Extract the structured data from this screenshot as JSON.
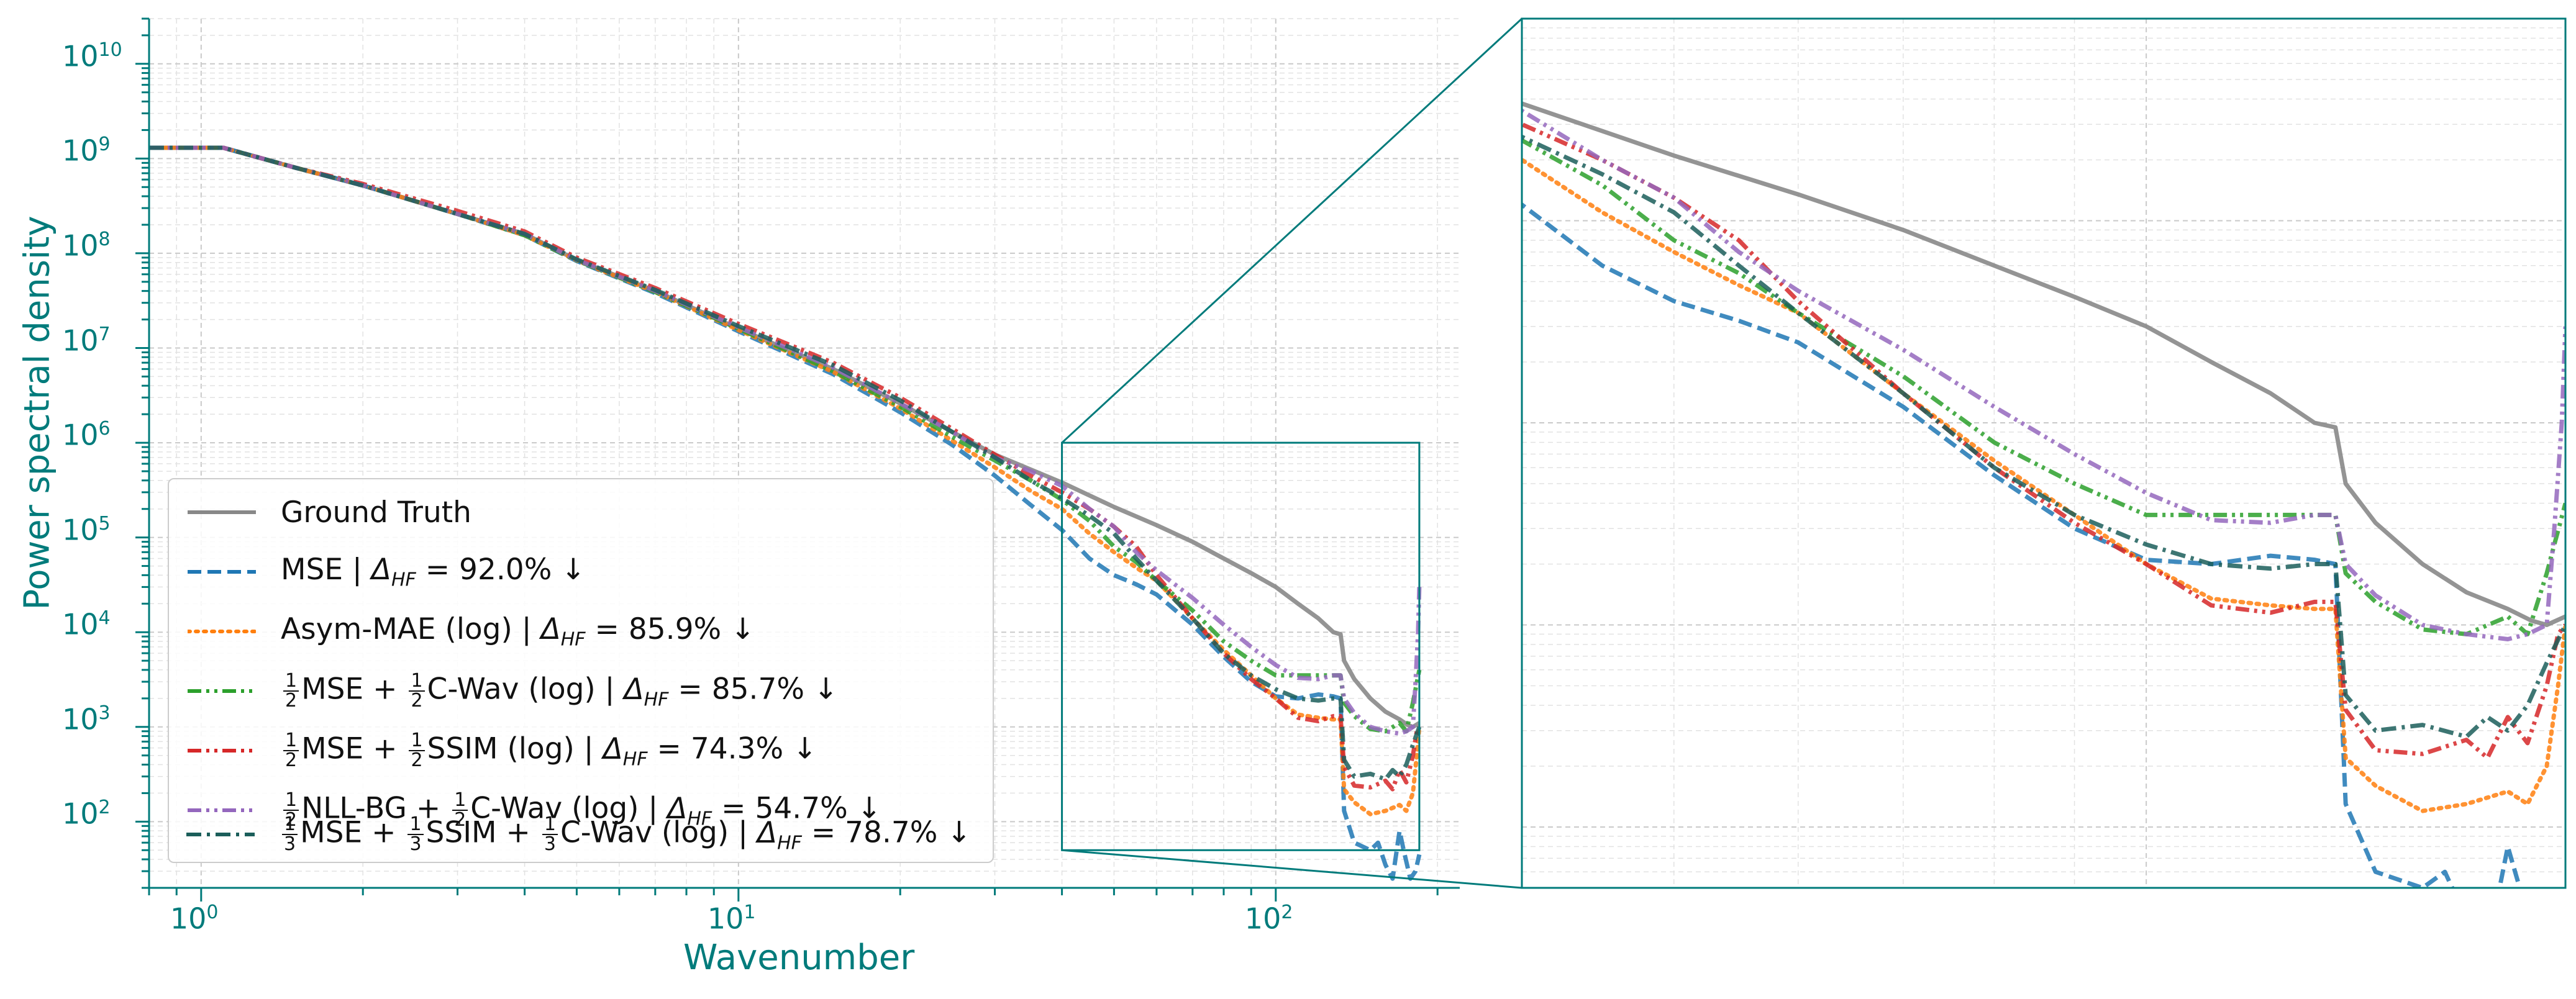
{
  "chart_data": {
    "type": "line",
    "xlabel": "Wavenumber",
    "ylabel": "Power spectral density",
    "x_scale": "log",
    "y_scale": "log",
    "xlim": [
      0.8,
      220
    ],
    "ylim": [
      20,
      30000000000
    ],
    "x_tick_labels": [
      "10^0",
      "10^1",
      "10^2"
    ],
    "y_tick_labels": [
      "10^2",
      "10^3",
      "10^4",
      "10^5",
      "10^6",
      "10^7",
      "10^8",
      "10^9",
      "10^10"
    ],
    "grid": true,
    "legend_position": "lower-left",
    "inset": {
      "xlim": [
        40,
        185
      ],
      "ylim": [
        50,
        1000000
      ],
      "connector": true
    },
    "accent_color": "#007b7b",
    "series": [
      {
        "name": "Ground Truth",
        "color": "#888888",
        "style": "solid",
        "points": [
          [
            0.8,
            1300000000.0
          ],
          [
            1.1,
            1300000000.0
          ],
          [
            1.5,
            800000000.0
          ],
          [
            2,
            520000000.0
          ],
          [
            3,
            260000000.0
          ],
          [
            4,
            160000000.0
          ],
          [
            5,
            85000000.0
          ],
          [
            7,
            40000000.0
          ],
          [
            10,
            16000000.0
          ],
          [
            15,
            6000000.0
          ],
          [
            20,
            2600000.0
          ],
          [
            25,
            1300000.0
          ],
          [
            30,
            750000.0
          ],
          [
            40,
            380000.0
          ],
          [
            50,
            210000.0
          ],
          [
            60,
            135000.0
          ],
          [
            70,
            90000.0
          ],
          [
            80,
            60000.0
          ],
          [
            90,
            42000.0
          ],
          [
            100,
            30000.0
          ],
          [
            110,
            20000.0
          ],
          [
            120,
            14000.0
          ],
          [
            128,
            10000.0
          ],
          [
            132,
            9500.0
          ],
          [
            134,
            5000.0
          ],
          [
            140,
            3200.0
          ],
          [
            150,
            2000.0
          ],
          [
            160,
            1450.0
          ],
          [
            170,
            1200.0
          ],
          [
            176,
            1050.0
          ],
          [
            180,
            1000.0
          ],
          [
            185,
            1100.0
          ]
        ]
      },
      {
        "name": "MSE | Δ_HF = 92.0% ↓",
        "color": "#1f77b4",
        "style": "dashed",
        "points": [
          [
            0.8,
            1300000000.0
          ],
          [
            1.1,
            1300000000.0
          ],
          [
            1.5,
            800000000.0
          ],
          [
            2,
            520000000.0
          ],
          [
            3,
            260000000.0
          ],
          [
            4,
            155000000.0
          ],
          [
            5,
            83000000.0
          ],
          [
            7,
            38000000.0
          ],
          [
            10,
            15000000.0
          ],
          [
            15,
            5300000.0
          ],
          [
            20,
            2100000.0
          ],
          [
            25,
            950000.0
          ],
          [
            30,
            450000.0
          ],
          [
            35,
            220000.0
          ],
          [
            40,
            120000.0
          ],
          [
            45,
            60000.0
          ],
          [
            50,
            40000.0
          ],
          [
            55,
            32000.0
          ],
          [
            60,
            25000.0
          ],
          [
            70,
            12000.0
          ],
          [
            80,
            5500.0
          ],
          [
            90,
            3000.0
          ],
          [
            100,
            2100.0
          ],
          [
            110,
            2000.0
          ],
          [
            120,
            2200.0
          ],
          [
            128,
            2100.0
          ],
          [
            132,
            2000.0
          ],
          [
            134,
            130
          ],
          [
            140,
            60
          ],
          [
            150,
            50
          ],
          [
            155,
            60
          ],
          [
            160,
            35
          ],
          [
            165,
            25
          ],
          [
            170,
            80
          ],
          [
            173,
            50
          ],
          [
            178,
            25
          ],
          [
            182,
            30
          ],
          [
            185,
            45
          ]
        ]
      },
      {
        "name": "Asym-MAE (log) | Δ_HF = 85.9% ↓",
        "color": "#ff7f0e",
        "style": "dotted",
        "points": [
          [
            0.8,
            1300000000.0
          ],
          [
            1.1,
            1300000000.0
          ],
          [
            1.5,
            800000000.0
          ],
          [
            2,
            520000000.0
          ],
          [
            3,
            260000000.0
          ],
          [
            4,
            155000000.0
          ],
          [
            5,
            84000000.0
          ],
          [
            7,
            39000000.0
          ],
          [
            10,
            15500000.0
          ],
          [
            15,
            5600000.0
          ],
          [
            20,
            2300000.0
          ],
          [
            25,
            1050000.0
          ],
          [
            30,
            550000.0
          ],
          [
            35,
            310000.0
          ],
          [
            40,
            200000.0
          ],
          [
            45,
            110000.0
          ],
          [
            50,
            70000.0
          ],
          [
            55,
            48000.0
          ],
          [
            60,
            35000.0
          ],
          [
            70,
            14000.0
          ],
          [
            80,
            6500.0
          ],
          [
            90,
            3500.0
          ],
          [
            100,
            2000.0
          ],
          [
            110,
            1350.0
          ],
          [
            120,
            1250.0
          ],
          [
            128,
            1200.0
          ],
          [
            132,
            1200.0
          ],
          [
            134,
            220
          ],
          [
            140,
            160
          ],
          [
            150,
            120
          ],
          [
            160,
            130
          ],
          [
            170,
            150
          ],
          [
            175,
            130
          ],
          [
            180,
            200
          ],
          [
            183,
            500
          ],
          [
            185,
            1000.0
          ]
        ]
      },
      {
        "name": "1/2MSE + 1/2C-Wav (log) | Δ_HF = 85.7% ↓",
        "color": "#2ca02c",
        "style": "dashdotdot",
        "points": [
          [
            0.8,
            1300000000.0
          ],
          [
            1.1,
            1300000000.0
          ],
          [
            1.5,
            800000000.0
          ],
          [
            2,
            520000000.0
          ],
          [
            3,
            260000000.0
          ],
          [
            4,
            155000000.0
          ],
          [
            5,
            84000000.0
          ],
          [
            7,
            39000000.0
          ],
          [
            10,
            16000000.0
          ],
          [
            15,
            5700000.0
          ],
          [
            20,
            2400000.0
          ],
          [
            25,
            1150000.0
          ],
          [
            30,
            650000.0
          ],
          [
            35,
            400000.0
          ],
          [
            40,
            250000.0
          ],
          [
            45,
            150000.0
          ],
          [
            50,
            80000.0
          ],
          [
            55,
            55000.0
          ],
          [
            60,
            35000.0
          ],
          [
            70,
            17000.0
          ],
          [
            80,
            8000.0
          ],
          [
            90,
            5000.0
          ],
          [
            100,
            3500.0
          ],
          [
            110,
            3500.0
          ],
          [
            120,
            3500.0
          ],
          [
            128,
            3500.0
          ],
          [
            132,
            3500.0
          ],
          [
            134,
            1800.0
          ],
          [
            140,
            1300.0
          ],
          [
            150,
            950
          ],
          [
            160,
            900
          ],
          [
            170,
            1100.0
          ],
          [
            175,
            900
          ],
          [
            180,
            1800.0
          ],
          [
            182,
            2500.0
          ],
          [
            185,
            4000.0
          ]
        ]
      },
      {
        "name": "1/2MSE + 1/2SSIM (log) | Δ_HF = 74.3% ↓",
        "color": "#d62728",
        "style": "dashdotdot",
        "points": [
          [
            0.8,
            1300000000.0
          ],
          [
            1.1,
            1300000000.0
          ],
          [
            1.5,
            800000000.0
          ],
          [
            2,
            540000000.0
          ],
          [
            3,
            280000000.0
          ],
          [
            4,
            170000000.0
          ],
          [
            5,
            90000000.0
          ],
          [
            7,
            43000000.0
          ],
          [
            10,
            18000000.0
          ],
          [
            15,
            7000000.0
          ],
          [
            20,
            3000000.0
          ],
          [
            25,
            1400000.0
          ],
          [
            30,
            750000.0
          ],
          [
            35,
            450000.0
          ],
          [
            40,
            300000.0
          ],
          [
            45,
            200000.0
          ],
          [
            50,
            130000.0
          ],
          [
            55,
            80000.0
          ],
          [
            60,
            40000.0
          ],
          [
            70,
            14000.0
          ],
          [
            80,
            6000.0
          ],
          [
            90,
            3200.0
          ],
          [
            100,
            2000.0
          ],
          [
            110,
            1250.0
          ],
          [
            120,
            1150.0
          ],
          [
            128,
            1300.0
          ],
          [
            132,
            1300.0
          ],
          [
            134,
            380
          ],
          [
            140,
            240
          ],
          [
            150,
            230
          ],
          [
            160,
            270
          ],
          [
            165,
            220
          ],
          [
            170,
            350
          ],
          [
            175,
            260
          ],
          [
            180,
            500
          ],
          [
            183,
            900
          ],
          [
            185,
            1000.0
          ]
        ]
      },
      {
        "name": "1/2NLL-BG + 1/2C-Wav (log) | Δ_HF = 54.7% ↓",
        "color": "#9467bd",
        "style": "dashdotdot",
        "points": [
          [
            0.8,
            1300000000.0
          ],
          [
            1.1,
            1300000000.0
          ],
          [
            1.5,
            800000000.0
          ],
          [
            2,
            520000000.0
          ],
          [
            3,
            260000000.0
          ],
          [
            4,
            160000000.0
          ],
          [
            5,
            85000000.0
          ],
          [
            7,
            40000000.0
          ],
          [
            10,
            16500000.0
          ],
          [
            15,
            6200000.0
          ],
          [
            20,
            2600000.0
          ],
          [
            25,
            1300000.0
          ],
          [
            30,
            700000.0
          ],
          [
            35,
            500000.0
          ],
          [
            40,
            350000.0
          ],
          [
            45,
            200000.0
          ],
          [
            50,
            130000.0
          ],
          [
            55,
            70000.0
          ],
          [
            60,
            45000.0
          ],
          [
            70,
            23000.0
          ],
          [
            80,
            12000.0
          ],
          [
            90,
            7000.0
          ],
          [
            100,
            4500.0
          ],
          [
            110,
            3300.0
          ],
          [
            120,
            3200.0
          ],
          [
            128,
            3500.0
          ],
          [
            132,
            3500.0
          ],
          [
            134,
            2000.0
          ],
          [
            140,
            1400.0
          ],
          [
            150,
            1000.0
          ],
          [
            160,
            900
          ],
          [
            170,
            850
          ],
          [
            175,
            900
          ],
          [
            180,
            1000.0
          ],
          [
            182,
            3000.0
          ],
          [
            184,
            10000.0
          ],
          [
            185,
            30000.0
          ]
        ]
      },
      {
        "name": "1/3MSE + 1/3SSIM + 1/3C-Wav (log) | Δ_HF = 78.7% ↓",
        "color": "#1b5e5a",
        "style": "dashdot",
        "points": [
          [
            0.8,
            1300000000.0
          ],
          [
            1.1,
            1300000000.0
          ],
          [
            1.5,
            800000000.0
          ],
          [
            2,
            520000000.0
          ],
          [
            3,
            260000000.0
          ],
          [
            4,
            160000000.0
          ],
          [
            5,
            86000000.0
          ],
          [
            7,
            41000000.0
          ],
          [
            10,
            17000000.0
          ],
          [
            15,
            6600000.0
          ],
          [
            20,
            2800000.0
          ],
          [
            25,
            1300000.0
          ],
          [
            30,
            700000.0
          ],
          [
            35,
            400000.0
          ],
          [
            40,
            260000.0
          ],
          [
            45,
            170000.0
          ],
          [
            50,
            110000.0
          ],
          [
            55,
            60000.0
          ],
          [
            60,
            35000.0
          ],
          [
            70,
            14000.0
          ],
          [
            80,
            6000.0
          ],
          [
            90,
            3500.0
          ],
          [
            100,
            2500.0
          ],
          [
            110,
            2000.0
          ],
          [
            120,
            1900.0
          ],
          [
            128,
            2000.0
          ],
          [
            132,
            2000.0
          ],
          [
            134,
            450
          ],
          [
            140,
            300
          ],
          [
            150,
            320
          ],
          [
            160,
            280
          ],
          [
            165,
            350
          ],
          [
            170,
            300
          ],
          [
            175,
            400
          ],
          [
            180,
            650
          ],
          [
            185,
            1000.0
          ]
        ]
      }
    ]
  }
}
